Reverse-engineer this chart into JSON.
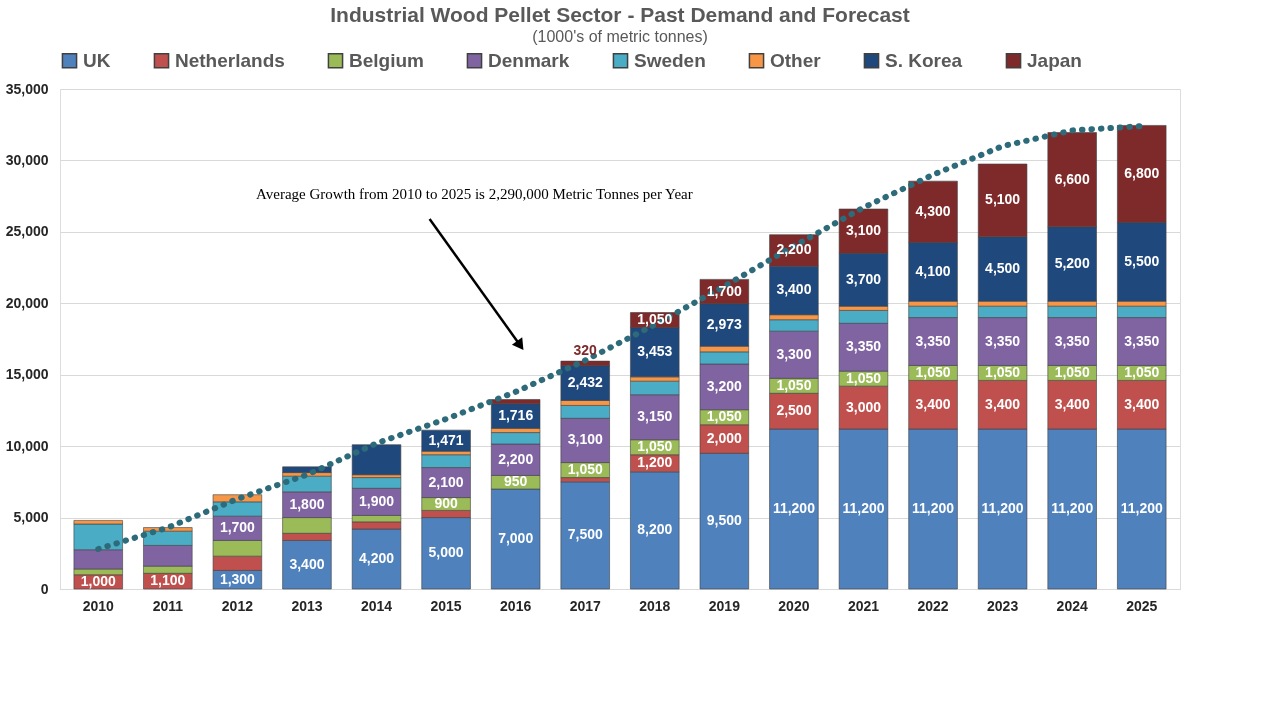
{
  "chart_data": {
    "type": "bar",
    "title": "Industrial Wood Pellet Sector - Past Demand and Forecast",
    "subtitle": "(1000's of metric tonnes)",
    "categories": [
      "2010",
      "2011",
      "2012",
      "2013",
      "2014",
      "2015",
      "2016",
      "2017",
      "2018",
      "2019",
      "2020",
      "2021",
      "2022",
      "2023",
      "2024",
      "2025"
    ],
    "stacked": true,
    "ylim": [
      0,
      35000
    ],
    "yticks": [
      0,
      {
        "value": 5000,
        "label": "5,000"
      },
      {
        "value": 10000,
        "label": "10,000"
      },
      {
        "value": 15000,
        "label": "15,000"
      },
      {
        "value": 20000,
        "label": "20,000"
      },
      {
        "value": 25000,
        "label": "25,000"
      },
      {
        "value": 30000,
        "label": "30,000"
      },
      {
        "value": 35000,
        "label": "35,000"
      }
    ],
    "grid": "y",
    "legend": "top",
    "series": [
      {
        "name": "UK",
        "color": "#4f81bd",
        "values": [
          null,
          null,
          1300,
          3400,
          4200,
          5000,
          7000,
          7500,
          8200,
          9500,
          11200,
          11200,
          11200,
          11200,
          11200,
          11200
        ],
        "value_labels": [
          null,
          null,
          "1,300",
          "3,400",
          "4,200",
          "5,000",
          "7,000",
          "7,500",
          "8,200",
          "9,500",
          "11,200",
          "11,200",
          "11,200",
          "11,200",
          "11,200",
          "11,200"
        ]
      },
      {
        "name": "Netherlands",
        "color": "#c0504d",
        "values": [
          1000,
          1100,
          1000,
          500,
          500,
          500,
          null,
          300,
          1200,
          2000,
          2500,
          3000,
          3400,
          3400,
          3400,
          3400
        ],
        "value_labels": [
          "1,000",
          "1,100",
          null,
          null,
          null,
          null,
          null,
          null,
          "1,200",
          "2,000",
          "2,500",
          "3,000",
          "3,400",
          "3,400",
          "3,400",
          "3,400"
        ]
      },
      {
        "name": "Belgium",
        "color": "#9bbb59",
        "values": [
          400,
          500,
          1100,
          1100,
          450,
          900,
          950,
          1050,
          1050,
          1050,
          1050,
          1050,
          1050,
          1050,
          1050,
          1050
        ],
        "value_labels": [
          null,
          null,
          null,
          null,
          null,
          "900",
          "950",
          "1,050",
          "1,050",
          "1,050",
          "1,050",
          "1,050",
          "1,050",
          "1,050",
          "1,050",
          "1,050"
        ]
      },
      {
        "name": "Denmark",
        "color": "#8064a2",
        "values": [
          1350,
          1450,
          1700,
          1800,
          1900,
          2100,
          2200,
          3100,
          3150,
          3200,
          3300,
          3350,
          3350,
          3350,
          3350,
          3350
        ],
        "value_labels": [
          null,
          null,
          "1,700",
          "1,800",
          "1,900",
          "2,100",
          "2,200",
          "3,100",
          "3,150",
          "3,200",
          "3,300",
          "3,350",
          "3,350",
          "3,350",
          "3,350",
          "3,350"
        ]
      },
      {
        "name": "Sweden",
        "color": "#4bacc6",
        "values": [
          1800,
          1000,
          1000,
          1100,
          750,
          900,
          800,
          900,
          950,
          850,
          800,
          900,
          800,
          800,
          800,
          800
        ]
      },
      {
        "name": "Other",
        "color": "#f79646",
        "values": [
          250,
          250,
          500,
          250,
          200,
          250,
          300,
          350,
          300,
          400,
          350,
          300,
          350,
          350,
          350,
          350
        ]
      },
      {
        "name": "S. Korea",
        "color": "#1f497d",
        "values": [
          null,
          null,
          null,
          400,
          2100,
          1471,
          1716,
          2432,
          3453,
          2973,
          3400,
          3700,
          4100,
          4500,
          5200,
          5500
        ],
        "value_labels": [
          null,
          null,
          null,
          null,
          null,
          "1,471",
          "1,716",
          "2,432",
          "3,453",
          "2,973",
          "3,400",
          "3,700",
          "4,100",
          "4,500",
          "5,200",
          "5,500"
        ]
      },
      {
        "name": "Japan",
        "color": "#7f2a2a",
        "values": [
          null,
          null,
          null,
          null,
          null,
          null,
          300,
          320,
          1050,
          1700,
          2200,
          3100,
          4300,
          5100,
          6600,
          6800
        ],
        "value_labels": [
          null,
          null,
          null,
          null,
          null,
          null,
          null,
          "320",
          "1,050",
          "1,700",
          "2,200",
          "3,100",
          "4,300",
          "5,100",
          "6,600",
          "6,800"
        ]
      },
      {
        "type": "line",
        "color": "#2e6b7a",
        "line_style": "dotted",
        "marker": "none",
        "values": [
          2800,
          4300,
          6300,
          8000,
          10200,
          11900,
          13800,
          16000,
          18500,
          21200,
          24000,
          26700,
          29000,
          31000,
          32100,
          32400
        ]
      }
    ],
    "annotations": [
      "Average Growth  from  2010  to 2025  is 2,290,000  Metric Tonnes per Year"
    ]
  }
}
